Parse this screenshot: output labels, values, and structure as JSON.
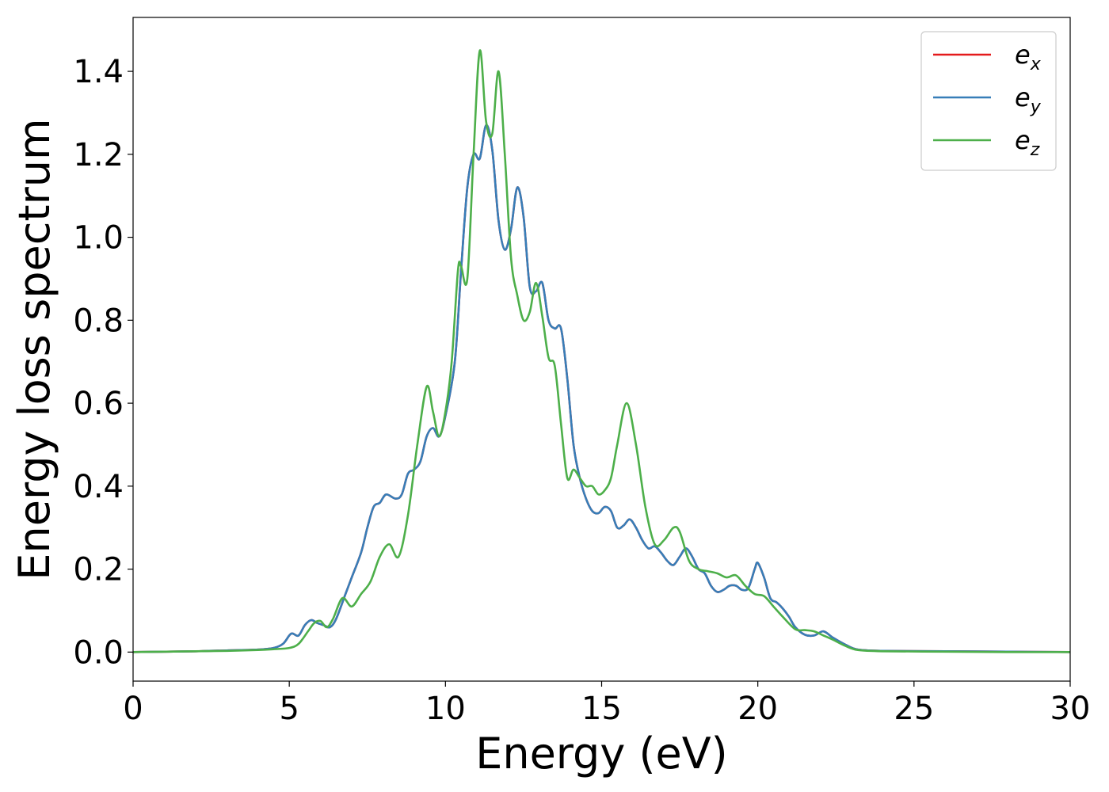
{
  "chart_data": {
    "type": "line",
    "title": "",
    "xlabel": "Energy (eV)",
    "ylabel": "Energy loss spectrum",
    "xlim": [
      0,
      30
    ],
    "ylim": [
      -0.07,
      1.53
    ],
    "xticks": [
      0,
      5,
      10,
      15,
      20,
      25,
      30
    ],
    "yticks": [
      0.0,
      0.2,
      0.4,
      0.6,
      0.8,
      1.0,
      1.2,
      1.4
    ],
    "xtick_labels": [
      "0",
      "5",
      "10",
      "15",
      "20",
      "25",
      "30"
    ],
    "ytick_labels": [
      "0.0",
      "0.2",
      "0.4",
      "0.6",
      "0.8",
      "1.0",
      "1.2",
      "1.4"
    ],
    "grid": false,
    "legend_position": "top-right",
    "series": [
      {
        "name": "e_x",
        "legend_base": "e",
        "legend_sub": "x",
        "color": "#e41a1c",
        "x": [
          0,
          2,
          3,
          4,
          4.5,
          4.8,
          5.0,
          5.1,
          5.3,
          5.5,
          5.7,
          5.9,
          6.1,
          6.3,
          6.5,
          6.8,
          7.0,
          7.3,
          7.5,
          7.7,
          7.9,
          8.1,
          8.4,
          8.6,
          8.8,
          9.0,
          9.2,
          9.4,
          9.6,
          9.8,
          10.0,
          10.3,
          10.5,
          10.7,
          10.9,
          11.1,
          11.3,
          11.5,
          11.7,
          11.9,
          12.1,
          12.3,
          12.5,
          12.7,
          12.9,
          13.1,
          13.3,
          13.5,
          13.7,
          13.9,
          14.1,
          14.3,
          14.5,
          14.7,
          14.9,
          15.1,
          15.3,
          15.5,
          15.7,
          15.9,
          16.1,
          16.3,
          16.5,
          16.7,
          16.9,
          17.1,
          17.3,
          17.5,
          17.7,
          17.9,
          18.1,
          18.3,
          18.5,
          18.7,
          18.9,
          19.1,
          19.3,
          19.5,
          19.7,
          19.9,
          20.0,
          20.2,
          20.4,
          20.6,
          20.8,
          21.0,
          21.2,
          21.5,
          21.8,
          22.1,
          22.4,
          22.8,
          23.2,
          24,
          26,
          28,
          30
        ],
        "y": [
          0.0,
          0.002,
          0.004,
          0.006,
          0.01,
          0.02,
          0.04,
          0.045,
          0.04,
          0.065,
          0.077,
          0.07,
          0.065,
          0.06,
          0.08,
          0.14,
          0.18,
          0.24,
          0.3,
          0.35,
          0.36,
          0.38,
          0.37,
          0.38,
          0.43,
          0.44,
          0.46,
          0.52,
          0.54,
          0.52,
          0.57,
          0.7,
          0.92,
          1.12,
          1.2,
          1.19,
          1.27,
          1.21,
          1.04,
          0.97,
          1.02,
          1.12,
          1.05,
          0.88,
          0.87,
          0.89,
          0.8,
          0.78,
          0.78,
          0.66,
          0.5,
          0.42,
          0.37,
          0.34,
          0.335,
          0.35,
          0.34,
          0.3,
          0.305,
          0.32,
          0.3,
          0.27,
          0.25,
          0.255,
          0.24,
          0.22,
          0.21,
          0.23,
          0.25,
          0.23,
          0.2,
          0.19,
          0.16,
          0.145,
          0.15,
          0.16,
          0.16,
          0.15,
          0.155,
          0.2,
          0.215,
          0.18,
          0.13,
          0.12,
          0.105,
          0.085,
          0.06,
          0.042,
          0.04,
          0.05,
          0.035,
          0.018,
          0.006,
          0.003,
          0.002,
          0.001,
          0.0
        ]
      },
      {
        "name": "e_y",
        "legend_base": "e",
        "legend_sub": "y",
        "color": "#377eb8",
        "x": [
          0,
          2,
          3,
          4,
          4.5,
          4.8,
          5.0,
          5.1,
          5.3,
          5.5,
          5.7,
          5.9,
          6.1,
          6.3,
          6.5,
          6.8,
          7.0,
          7.3,
          7.5,
          7.7,
          7.9,
          8.1,
          8.4,
          8.6,
          8.8,
          9.0,
          9.2,
          9.4,
          9.6,
          9.8,
          10.0,
          10.3,
          10.5,
          10.7,
          10.9,
          11.1,
          11.3,
          11.5,
          11.7,
          11.9,
          12.1,
          12.3,
          12.5,
          12.7,
          12.9,
          13.1,
          13.3,
          13.5,
          13.7,
          13.9,
          14.1,
          14.3,
          14.5,
          14.7,
          14.9,
          15.1,
          15.3,
          15.5,
          15.7,
          15.9,
          16.1,
          16.3,
          16.5,
          16.7,
          16.9,
          17.1,
          17.3,
          17.5,
          17.7,
          17.9,
          18.1,
          18.3,
          18.5,
          18.7,
          18.9,
          19.1,
          19.3,
          19.5,
          19.7,
          19.9,
          20.0,
          20.2,
          20.4,
          20.6,
          20.8,
          21.0,
          21.2,
          21.5,
          21.8,
          22.1,
          22.4,
          22.8,
          23.2,
          24,
          26,
          28,
          30
        ],
        "y": [
          0.0,
          0.002,
          0.004,
          0.006,
          0.01,
          0.02,
          0.04,
          0.045,
          0.04,
          0.065,
          0.077,
          0.07,
          0.065,
          0.06,
          0.08,
          0.14,
          0.18,
          0.24,
          0.3,
          0.35,
          0.36,
          0.38,
          0.37,
          0.38,
          0.43,
          0.44,
          0.46,
          0.52,
          0.54,
          0.52,
          0.57,
          0.7,
          0.92,
          1.12,
          1.2,
          1.19,
          1.27,
          1.21,
          1.04,
          0.97,
          1.02,
          1.12,
          1.05,
          0.88,
          0.87,
          0.89,
          0.8,
          0.78,
          0.78,
          0.66,
          0.5,
          0.42,
          0.37,
          0.34,
          0.335,
          0.35,
          0.34,
          0.3,
          0.305,
          0.32,
          0.3,
          0.27,
          0.25,
          0.255,
          0.24,
          0.22,
          0.21,
          0.23,
          0.25,
          0.23,
          0.2,
          0.19,
          0.16,
          0.145,
          0.15,
          0.16,
          0.16,
          0.15,
          0.155,
          0.2,
          0.215,
          0.18,
          0.13,
          0.12,
          0.105,
          0.085,
          0.06,
          0.042,
          0.04,
          0.05,
          0.035,
          0.018,
          0.006,
          0.003,
          0.002,
          0.001,
          0.0
        ]
      },
      {
        "name": "e_z",
        "legend_base": "e",
        "legend_sub": "z",
        "color": "#4daf4a",
        "x": [
          0,
          2,
          3,
          4,
          4.5,
          5.0,
          5.3,
          5.6,
          5.8,
          6.0,
          6.2,
          6.4,
          6.7,
          7.0,
          7.3,
          7.6,
          7.9,
          8.2,
          8.5,
          8.8,
          9.1,
          9.4,
          9.6,
          9.8,
          10.0,
          10.2,
          10.4,
          10.5,
          10.7,
          10.9,
          11.1,
          11.3,
          11.5,
          11.7,
          11.9,
          12.1,
          12.3,
          12.5,
          12.7,
          12.9,
          13.1,
          13.3,
          13.5,
          13.7,
          13.9,
          14.1,
          14.3,
          14.5,
          14.7,
          14.9,
          15.1,
          15.3,
          15.5,
          15.8,
          16.1,
          16.4,
          16.7,
          17.0,
          17.3,
          17.5,
          17.8,
          18.1,
          18.4,
          18.7,
          19.0,
          19.3,
          19.6,
          19.9,
          20.2,
          20.5,
          20.8,
          21.2,
          21.5,
          21.8,
          22.1,
          22.4,
          22.8,
          23.2,
          24,
          26,
          28,
          30
        ],
        "y": [
          0.0,
          0.002,
          0.003,
          0.005,
          0.007,
          0.01,
          0.02,
          0.05,
          0.07,
          0.075,
          0.06,
          0.08,
          0.13,
          0.11,
          0.14,
          0.17,
          0.23,
          0.26,
          0.23,
          0.33,
          0.5,
          0.64,
          0.58,
          0.52,
          0.58,
          0.7,
          0.92,
          0.93,
          0.9,
          1.2,
          1.45,
          1.28,
          1.25,
          1.4,
          1.2,
          0.95,
          0.86,
          0.8,
          0.82,
          0.89,
          0.81,
          0.71,
          0.69,
          0.55,
          0.42,
          0.44,
          0.42,
          0.4,
          0.4,
          0.38,
          0.39,
          0.42,
          0.5,
          0.6,
          0.5,
          0.35,
          0.26,
          0.27,
          0.3,
          0.29,
          0.22,
          0.2,
          0.195,
          0.19,
          0.18,
          0.185,
          0.16,
          0.14,
          0.135,
          0.11,
          0.085,
          0.055,
          0.053,
          0.05,
          0.04,
          0.03,
          0.015,
          0.005,
          0.002,
          0.001,
          0.0,
          0.0
        ]
      }
    ]
  }
}
